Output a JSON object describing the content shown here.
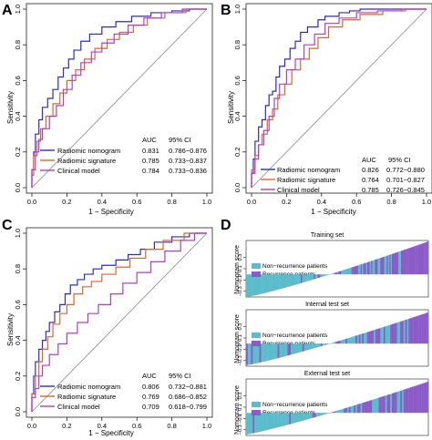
{
  "panels": [
    {
      "letter": "A",
      "kind": "roc",
      "xlabel": "1 − Specificity",
      "ylabel": "Sensitivity",
      "legend_header": {
        "auc": "AUC",
        "ci": "95% CI"
      },
      "legend": [
        {
          "name": "Radiomic nomogram",
          "auc": "0.831",
          "ci": "0.786−0.876",
          "color": "#2a2ad4"
        },
        {
          "name": "Radiomic signature",
          "auc": "0.785",
          "ci": "0.733−0.837",
          "color": "#e0652a"
        },
        {
          "name": "Clinical model",
          "auc": "0.784",
          "ci": "0.733−0.836",
          "color": "#b23ccf"
        }
      ]
    },
    {
      "letter": "B",
      "kind": "roc",
      "xlabel": "1 − Specificity",
      "ylabel": "Sensitivity",
      "legend_header": {
        "auc": "AUC",
        "ci": "95% CI"
      },
      "legend": [
        {
          "name": "Radiomic nomogram",
          "auc": "0.826",
          "ci": "0.772−0.880",
          "color": "#2a2ad4"
        },
        {
          "name": "Radiomic signature",
          "auc": "0.764",
          "ci": "0.701−0.827",
          "color": "#e0652a"
        },
        {
          "name": "Clinical model",
          "auc": "0.785",
          "ci": "0.726−0.845",
          "color": "#b23ccf"
        }
      ]
    },
    {
      "letter": "C",
      "kind": "roc",
      "xlabel": "1 − Specificity",
      "ylabel": "Sensitivity",
      "legend_header": {
        "auc": "AUC",
        "ci": "95% CI"
      },
      "legend": [
        {
          "name": "Radiomic nomogram",
          "auc": "0.806",
          "ci": "0.732−0.881",
          "color": "#2a2ad4"
        },
        {
          "name": "Radiomic signature",
          "auc": "0.769",
          "ci": "0.686−0.852",
          "color": "#e0652a"
        },
        {
          "name": "Clinical model",
          "auc": "0.709",
          "ci": "0.618−0.799",
          "color": "#b23ccf"
        }
      ]
    },
    {
      "letter": "D",
      "kind": "waterfall"
    }
  ],
  "chart_data": [
    {
      "type": "line",
      "panel": "A",
      "xlabel": "1 − Specificity",
      "ylabel": "Sensitivity",
      "xlim": [
        0,
        1
      ],
      "ylim": [
        0,
        1
      ],
      "xticks": [
        "0.0",
        "0.2",
        "0.4",
        "0.6",
        "0.8",
        "1.0"
      ],
      "yticks": [
        "0.0",
        "0.2",
        "0.4",
        "0.6",
        "0.8",
        "1.0"
      ],
      "reference_line": [
        [
          0,
          0
        ],
        [
          1,
          1
        ]
      ],
      "series": [
        {
          "name": "Radiomic nomogram",
          "color": "#2a2ad4",
          "points": [
            [
              0,
              0
            ],
            [
              0.01,
              0.1
            ],
            [
              0.02,
              0.2
            ],
            [
              0.04,
              0.3
            ],
            [
              0.06,
              0.38
            ],
            [
              0.09,
              0.45
            ],
            [
              0.12,
              0.5
            ],
            [
              0.15,
              0.55
            ],
            [
              0.18,
              0.62
            ],
            [
              0.21,
              0.67
            ],
            [
              0.24,
              0.72
            ],
            [
              0.28,
              0.77
            ],
            [
              0.33,
              0.82
            ],
            [
              0.4,
              0.86
            ],
            [
              0.48,
              0.9
            ],
            [
              0.57,
              0.93
            ],
            [
              0.68,
              0.96
            ],
            [
              0.8,
              0.98
            ],
            [
              0.9,
              0.99
            ],
            [
              1,
              1
            ]
          ]
        },
        {
          "name": "Radiomic signature",
          "color": "#e0652a",
          "points": [
            [
              0,
              0
            ],
            [
              0.01,
              0.07
            ],
            [
              0.03,
              0.18
            ],
            [
              0.05,
              0.26
            ],
            [
              0.08,
              0.33
            ],
            [
              0.12,
              0.4
            ],
            [
              0.16,
              0.47
            ],
            [
              0.2,
              0.53
            ],
            [
              0.25,
              0.6
            ],
            [
              0.3,
              0.66
            ],
            [
              0.36,
              0.72
            ],
            [
              0.43,
              0.78
            ],
            [
              0.5,
              0.83
            ],
            [
              0.58,
              0.87
            ],
            [
              0.66,
              0.91
            ],
            [
              0.76,
              0.95
            ],
            [
              0.88,
              0.98
            ],
            [
              1,
              1
            ]
          ]
        },
        {
          "name": "Clinical model",
          "color": "#b23ccf",
          "points": [
            [
              0,
              0
            ],
            [
              0.02,
              0.1
            ],
            [
              0.04,
              0.2
            ],
            [
              0.06,
              0.27
            ],
            [
              0.1,
              0.33
            ],
            [
              0.14,
              0.4
            ],
            [
              0.18,
              0.46
            ],
            [
              0.23,
              0.55
            ],
            [
              0.28,
              0.63
            ],
            [
              0.34,
              0.7
            ],
            [
              0.4,
              0.76
            ],
            [
              0.47,
              0.81
            ],
            [
              0.55,
              0.86
            ],
            [
              0.64,
              0.91
            ],
            [
              0.74,
              0.95
            ],
            [
              0.86,
              0.98
            ],
            [
              1,
              1
            ]
          ]
        }
      ]
    },
    {
      "type": "line",
      "panel": "B",
      "xlabel": "1 − Specificity",
      "ylabel": "Sensitivity",
      "xlim": [
        0,
        1
      ],
      "ylim": [
        0,
        1
      ],
      "xticks": [
        "0.0",
        "0.2",
        "0.4",
        "0.6",
        "0.8",
        "1.0"
      ],
      "yticks": [
        "0.0",
        "0.2",
        "0.4",
        "0.6",
        "0.8",
        "1.0"
      ],
      "reference_line": [
        [
          0,
          0
        ],
        [
          1,
          1
        ]
      ],
      "series": [
        {
          "name": "Radiomic nomogram",
          "color": "#2a2ad4",
          "points": [
            [
              0,
              0
            ],
            [
              0.01,
              0.08
            ],
            [
              0.02,
              0.16
            ],
            [
              0.04,
              0.26
            ],
            [
              0.06,
              0.34
            ],
            [
              0.08,
              0.38
            ],
            [
              0.1,
              0.46
            ],
            [
              0.12,
              0.52
            ],
            [
              0.14,
              0.54
            ],
            [
              0.16,
              0.62
            ],
            [
              0.19,
              0.68
            ],
            [
              0.22,
              0.72
            ],
            [
              0.25,
              0.78
            ],
            [
              0.28,
              0.82
            ],
            [
              0.32,
              0.87
            ],
            [
              0.38,
              0.9
            ],
            [
              0.42,
              0.94
            ],
            [
              0.5,
              0.96
            ],
            [
              0.56,
              0.98
            ],
            [
              0.62,
              0.99
            ],
            [
              1,
              1
            ]
          ]
        },
        {
          "name": "Radiomic signature",
          "color": "#e0652a",
          "points": [
            [
              0,
              0
            ],
            [
              0.02,
              0.1
            ],
            [
              0.04,
              0.18
            ],
            [
              0.06,
              0.24
            ],
            [
              0.09,
              0.3
            ],
            [
              0.12,
              0.38
            ],
            [
              0.15,
              0.44
            ],
            [
              0.19,
              0.52
            ],
            [
              0.23,
              0.58
            ],
            [
              0.28,
              0.66
            ],
            [
              0.33,
              0.72
            ],
            [
              0.38,
              0.78
            ],
            [
              0.44,
              0.84
            ],
            [
              0.52,
              0.9
            ],
            [
              0.62,
              0.94
            ],
            [
              0.75,
              0.97
            ],
            [
              0.88,
              0.99
            ],
            [
              1,
              1
            ]
          ]
        },
        {
          "name": "Clinical model",
          "color": "#b23ccf",
          "points": [
            [
              0,
              0
            ],
            [
              0.02,
              0.08
            ],
            [
              0.04,
              0.16
            ],
            [
              0.07,
              0.24
            ],
            [
              0.1,
              0.32
            ],
            [
              0.13,
              0.4
            ],
            [
              0.16,
              0.5
            ],
            [
              0.2,
              0.58
            ],
            [
              0.25,
              0.66
            ],
            [
              0.3,
              0.72
            ],
            [
              0.36,
              0.8
            ],
            [
              0.42,
              0.86
            ],
            [
              0.5,
              0.92
            ],
            [
              0.6,
              0.95
            ],
            [
              0.72,
              0.98
            ],
            [
              0.86,
              0.99
            ],
            [
              1,
              1
            ]
          ]
        }
      ]
    },
    {
      "type": "line",
      "panel": "C",
      "xlabel": "1 − Specificity",
      "ylabel": "Sensitivity",
      "xlim": [
        0,
        1
      ],
      "ylim": [
        0,
        1
      ],
      "xticks": [
        "0.0",
        "0.2",
        "0.4",
        "0.6",
        "0.8",
        "1.0"
      ],
      "yticks": [
        "0.0",
        "0.2",
        "0.4",
        "0.6",
        "0.8",
        "1.0"
      ],
      "reference_line": [
        [
          0,
          0
        ],
        [
          1,
          1
        ]
      ],
      "series": [
        {
          "name": "Radiomic nomogram",
          "color": "#2a2ad4",
          "points": [
            [
              0,
              0
            ],
            [
              0.01,
              0.1
            ],
            [
              0.02,
              0.2
            ],
            [
              0.04,
              0.28
            ],
            [
              0.06,
              0.35
            ],
            [
              0.08,
              0.4
            ],
            [
              0.1,
              0.45
            ],
            [
              0.13,
              0.5
            ],
            [
              0.16,
              0.56
            ],
            [
              0.19,
              0.6
            ],
            [
              0.22,
              0.66
            ],
            [
              0.26,
              0.71
            ],
            [
              0.3,
              0.74
            ],
            [
              0.35,
              0.77
            ],
            [
              0.4,
              0.8
            ],
            [
              0.48,
              0.82
            ],
            [
              0.55,
              0.85
            ],
            [
              0.62,
              0.88
            ],
            [
              0.7,
              0.91
            ],
            [
              0.8,
              0.95
            ],
            [
              0.9,
              0.98
            ],
            [
              1,
              1
            ]
          ]
        },
        {
          "name": "Radiomic signature",
          "color": "#e0652a",
          "points": [
            [
              0,
              0
            ],
            [
              0.02,
              0.1
            ],
            [
              0.04,
              0.2
            ],
            [
              0.06,
              0.28
            ],
            [
              0.09,
              0.35
            ],
            [
              0.12,
              0.42
            ],
            [
              0.16,
              0.49
            ],
            [
              0.2,
              0.55
            ],
            [
              0.24,
              0.6
            ],
            [
              0.29,
              0.66
            ],
            [
              0.34,
              0.7
            ],
            [
              0.4,
              0.73
            ],
            [
              0.48,
              0.77
            ],
            [
              0.56,
              0.81
            ],
            [
              0.65,
              0.86
            ],
            [
              0.75,
              0.91
            ],
            [
              0.87,
              0.96
            ],
            [
              1,
              1
            ]
          ]
        },
        {
          "name": "Clinical model",
          "color": "#b23ccf",
          "points": [
            [
              0,
              0
            ],
            [
              0.02,
              0.08
            ],
            [
              0.04,
              0.13
            ],
            [
              0.06,
              0.2
            ],
            [
              0.1,
              0.26
            ],
            [
              0.15,
              0.32
            ],
            [
              0.2,
              0.38
            ],
            [
              0.26,
              0.44
            ],
            [
              0.32,
              0.5
            ],
            [
              0.38,
              0.55
            ],
            [
              0.45,
              0.6
            ],
            [
              0.52,
              0.66
            ],
            [
              0.6,
              0.72
            ],
            [
              0.68,
              0.78
            ],
            [
              0.76,
              0.84
            ],
            [
              0.85,
              0.9
            ],
            [
              0.93,
              0.96
            ],
            [
              1,
              1
            ]
          ]
        }
      ]
    },
    {
      "type": "bar",
      "panel": "D",
      "subtitle": "Training set",
      "ylabel": "Nomogram score",
      "yticks": [
        "0.3",
        "0.1",
        "−0.1",
        "−0.3"
      ],
      "ylim": [
        -0.4,
        0.6
      ],
      "legend": [
        {
          "name": "Non−recurrence patients",
          "color": "#5bbccb"
        },
        {
          "name": "Recurrence patients",
          "color": "#8b5cc8"
        }
      ],
      "n": 140,
      "min": -0.4,
      "max": 0.58,
      "recurrence_weight": 1.0
    },
    {
      "type": "bar",
      "panel": "D",
      "subtitle": "Internal test set",
      "ylabel": "Nomogram score",
      "yticks": [
        "0.3",
        "0.1",
        "−0.1",
        "−0.3"
      ],
      "ylim": [
        -0.4,
        0.6
      ],
      "legend": [
        {
          "name": "Non−recurrence patients",
          "color": "#5bbccb"
        },
        {
          "name": "Recurrence patients",
          "color": "#8b5cc8"
        }
      ],
      "n": 110,
      "min": -0.38,
      "max": 0.55,
      "recurrence_weight": 0.9
    },
    {
      "type": "bar",
      "panel": "D",
      "subtitle": "External test set",
      "ylabel": "Nomogram score",
      "yticks": [
        "0.3",
        "0.1",
        "−0.1",
        "−0.3"
      ],
      "ylim": [
        -0.4,
        0.6
      ],
      "legend": [
        {
          "name": "Non−recurrence patients",
          "color": "#5bbccb"
        },
        {
          "name": "Recurrence patients",
          "color": "#8b5cc8"
        }
      ],
      "n": 110,
      "min": -0.38,
      "max": 0.55,
      "recurrence_weight": 1.1
    }
  ]
}
